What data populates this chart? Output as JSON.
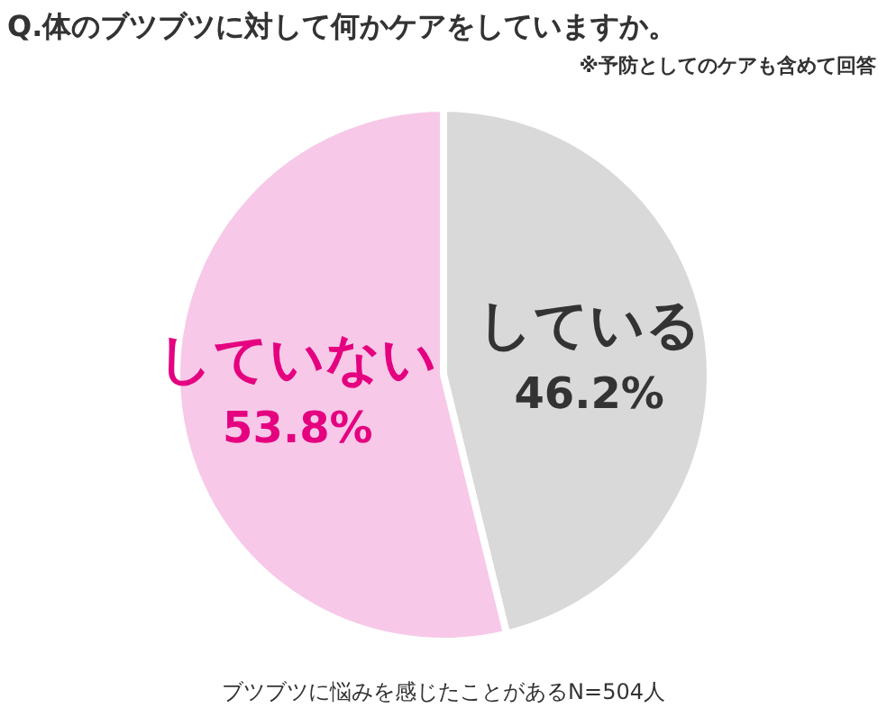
{
  "chart_data": {
    "type": "pie",
    "title": "Q.体のブツブツに対して何かケアをしていますか。",
    "subtitle": "※予防としてのケアも含めて回答",
    "categories": [
      "している",
      "していない"
    ],
    "values": [
      46.2,
      53.8
    ],
    "value_labels": [
      "46.2%",
      "53.8%"
    ],
    "colors": [
      "#d9d9d9",
      "#f7c8e8"
    ],
    "legend": false,
    "annotations": [
      "ブツブツに悩みを感じたことがあるN=504人"
    ]
  }
}
